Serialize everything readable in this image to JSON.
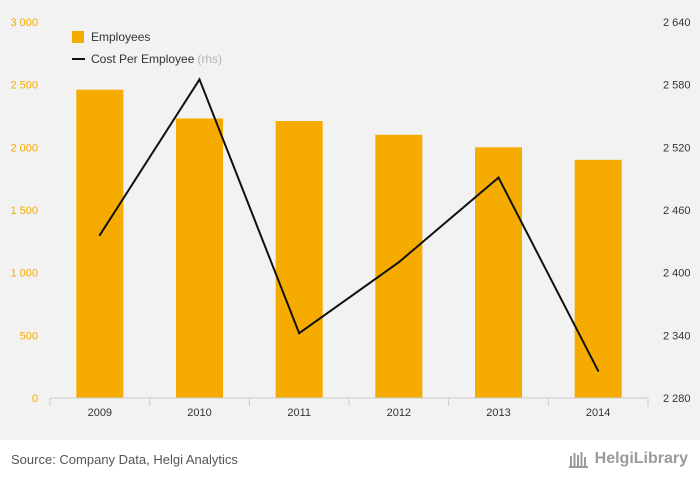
{
  "colors": {
    "bar": "#f5ab00",
    "line": "#111111",
    "left_axis_text": "#f5ab00",
    "right_axis_text": "#333333",
    "background": "#f2f2f2"
  },
  "chart_data": {
    "type": "bar",
    "categories": [
      "2009",
      "2010",
      "2011",
      "2012",
      "2013",
      "2014"
    ],
    "series": [
      {
        "name": "Employees",
        "type": "bar",
        "axis": "left",
        "values": [
          2460,
          2230,
          2210,
          2100,
          2000,
          1900
        ]
      },
      {
        "name": "Cost Per Employee",
        "type": "line",
        "axis": "right",
        "values": [
          2436,
          2585,
          2342,
          2410,
          2491,
          2306
        ]
      }
    ],
    "ylim_left": [
      0,
      3000
    ],
    "yticks_left": [
      "3 000",
      "2 500",
      "2 000",
      "1 500",
      "1 000",
      "500",
      "0"
    ],
    "ylim_right": [
      2280,
      2640
    ],
    "yticks_right": [
      "2 640",
      "2 580",
      "2 520",
      "2 460",
      "2 400",
      "2 340",
      "2 280"
    ],
    "legend": {
      "position": "top-left",
      "items": [
        {
          "label": "Employees",
          "note": ""
        },
        {
          "label": "Cost Per Employee",
          "note": "(rhs)"
        }
      ]
    },
    "grid": false
  },
  "footer": {
    "source": "Source: Company Data, Helgi Analytics",
    "logo_text": "HelgiLibrary"
  }
}
